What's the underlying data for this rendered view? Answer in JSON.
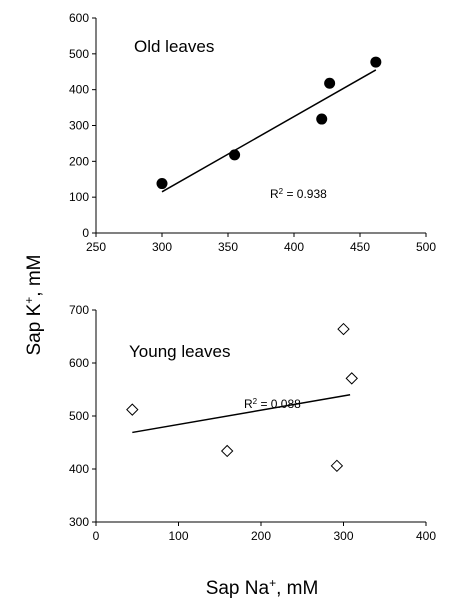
{
  "y_axis_title": {
    "main": "Sap K",
    "sup": "+",
    "unit": ", mM"
  },
  "x_axis_title": {
    "main": "Sap Na",
    "sup": "+",
    "unit": ", mM"
  },
  "chart_data": [
    {
      "type": "scatter",
      "title": "Old leaves",
      "x_ticks": [
        "250",
        "300",
        "350",
        "400",
        "450",
        "500"
      ],
      "y_ticks": [
        "0",
        "100",
        "200",
        "300",
        "400",
        "500",
        "600"
      ],
      "xlim": [
        250,
        500
      ],
      "ylim": [
        0,
        600
      ],
      "marker": "filled-circle",
      "points": [
        {
          "x": 300,
          "y": 138
        },
        {
          "x": 355,
          "y": 218
        },
        {
          "x": 421,
          "y": 318
        },
        {
          "x": 427,
          "y": 418
        },
        {
          "x": 462,
          "y": 477
        }
      ],
      "trendline": {
        "x": [
          300,
          462
        ],
        "y": [
          115,
          455
        ]
      },
      "r2": {
        "label": "R",
        "sup": "2",
        "value": " = 0.938"
      }
    },
    {
      "type": "scatter",
      "title": "Young leaves",
      "x_ticks": [
        "0",
        "100",
        "200",
        "300",
        "400"
      ],
      "y_ticks": [
        "300",
        "400",
        "500",
        "600",
        "700"
      ],
      "xlim": [
        0,
        400
      ],
      "ylim": [
        300,
        700
      ],
      "marker": "open-diamond",
      "points": [
        {
          "x": 44,
          "y": 512
        },
        {
          "x": 159,
          "y": 434
        },
        {
          "x": 292,
          "y": 406
        },
        {
          "x": 300,
          "y": 664
        },
        {
          "x": 310,
          "y": 571
        }
      ],
      "trendline": {
        "x": [
          44,
          308
        ],
        "y": [
          469,
          540
        ]
      },
      "r2": {
        "label": "R",
        "sup": "2",
        "value": " = 0.088"
      }
    }
  ]
}
